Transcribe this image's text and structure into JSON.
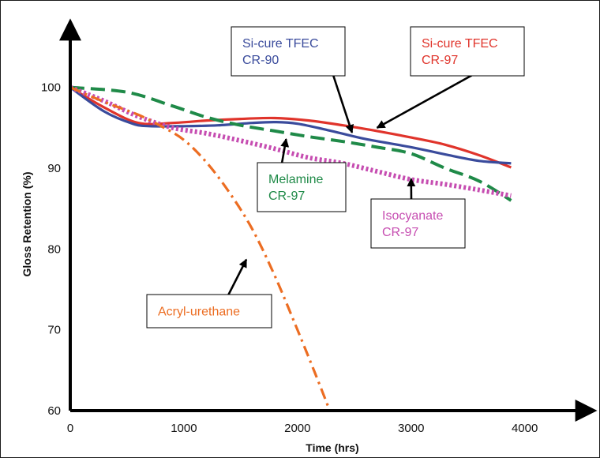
{
  "chart_data": {
    "type": "line",
    "title": "",
    "xlabel": "Time (hrs)",
    "ylabel": "Gloss Retention (%)",
    "xlim": [
      0,
      4600
    ],
    "ylim": [
      60,
      107
    ],
    "xticks": [
      0,
      1000,
      2000,
      3000,
      4000
    ],
    "yticks": [
      60,
      70,
      80,
      90,
      100
    ],
    "grid": false,
    "legend": "callout boxes",
    "series": [
      {
        "name": "Si-cure TFEC CR-97",
        "color": "#e0342b",
        "dash": "solid",
        "x": [
          0,
          300,
          600,
          900,
          1200,
          1500,
          1800,
          2100,
          2400,
          2700,
          3000,
          3300,
          3600,
          3880
        ],
        "y": [
          100,
          97.5,
          95.6,
          95.6,
          95.9,
          96.1,
          96.2,
          95.9,
          95.3,
          94.6,
          93.8,
          92.9,
          91.6,
          90.1
        ]
      },
      {
        "name": "Si-cure TFEC CR-90",
        "color": "#3a4b9c",
        "dash": "solid",
        "x": [
          0,
          300,
          550,
          700,
          1000,
          1300,
          1600,
          1800,
          2000,
          2300,
          2600,
          3000,
          3300,
          3600,
          3880
        ],
        "y": [
          100,
          97,
          95.5,
          95.2,
          95.2,
          95.3,
          95.6,
          95.7,
          95.5,
          94.6,
          93.6,
          92.6,
          91.7,
          90.9,
          90.6
        ]
      },
      {
        "name": "Melamine CR-97",
        "color": "#1f8a48",
        "dash": "dashed",
        "x": [
          0,
          500,
          900,
          1200,
          1500,
          1800,
          2100,
          2400,
          2700,
          3000,
          3300,
          3600,
          3880
        ],
        "y": [
          100,
          99.4,
          97.7,
          96.3,
          95.3,
          94.6,
          93.9,
          93.3,
          92.6,
          91.8,
          90.0,
          88.4,
          86.0
        ]
      },
      {
        "name": "Isocyanate CR-97",
        "color": "#c64db1",
        "dash": "dotted",
        "x": [
          0,
          300,
          600,
          900,
          1200,
          1500,
          1800,
          2100,
          2400,
          2700,
          3000,
          3300,
          3600,
          3880
        ],
        "y": [
          100,
          98.3,
          96.4,
          95.0,
          94.3,
          93.4,
          92.4,
          91.3,
          90.6,
          89.6,
          88.6,
          88.0,
          87.3,
          86.6
        ]
      },
      {
        "name": "Acryl-urethane",
        "color": "#ec6d22",
        "dash": "dashdot",
        "x": [
          0,
          300,
          600,
          800,
          1000,
          1200,
          1400,
          1600,
          1800,
          2000,
          2150,
          2270
        ],
        "y": [
          100,
          98.2,
          96.6,
          95.2,
          93.5,
          90.7,
          87.0,
          82.5,
          76.7,
          70.0,
          64.8,
          60.5
        ]
      }
    ],
    "annotations": [
      {
        "lines": [
          "Si-cure TFEC",
          "CR-90"
        ],
        "color": "#3a4b9c",
        "arrow_to": [
          2480,
          94.4
        ]
      },
      {
        "lines": [
          "Si-cure TFEC",
          "CR-97"
        ],
        "color": "#e0342b",
        "arrow_to": [
          2700,
          95.0
        ]
      },
      {
        "lines": [
          "Melamine",
          "CR-97"
        ],
        "color": "#1f8a48",
        "arrow_to": [
          1900,
          93.6
        ]
      },
      {
        "lines": [
          "Isocyanate",
          "CR-97"
        ],
        "color": "#c64db1",
        "arrow_to": [
          3000,
          88.7
        ]
      },
      {
        "lines": [
          "Acryl-urethane"
        ],
        "color": "#ec6d22",
        "arrow_to": [
          1550,
          78.7
        ]
      }
    ]
  }
}
